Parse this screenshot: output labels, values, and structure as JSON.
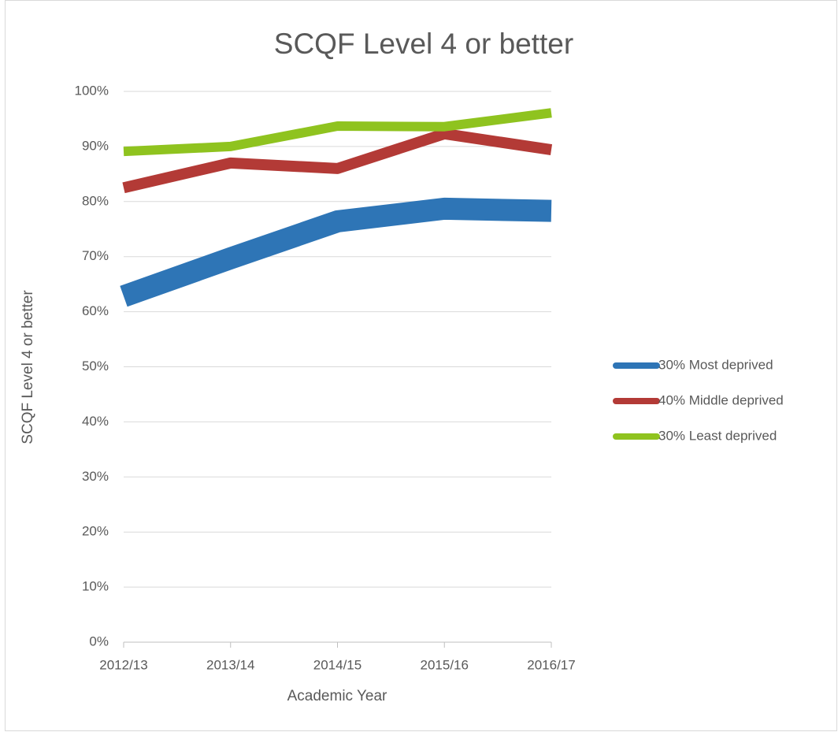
{
  "chart_data": {
    "type": "line",
    "title": "SCQF Level 4 or better",
    "x_label": "Academic Year",
    "y_label": "SCQF Level 4 or better",
    "categories": [
      "2012/13",
      "2013/14",
      "2014/15",
      "2015/16",
      "2016/17"
    ],
    "series": [
      {
        "name": "30% Most deprived",
        "color": "#2e75b6",
        "values": [
          62.8,
          69.7,
          76.4,
          78.7,
          78.3
        ]
      },
      {
        "name": "40% Middle deprived",
        "color": "#b33a36",
        "values": [
          82.5,
          87,
          86,
          92.3,
          89.4
        ]
      },
      {
        "name": "30% Least deprived",
        "color": "#8fc31f",
        "values": [
          89.1,
          90,
          93.7,
          93.6,
          96.1
        ]
      }
    ],
    "ylim": [
      0,
      100
    ],
    "yticks": [
      {
        "value": 0,
        "label": "0%"
      },
      {
        "value": 10,
        "label": "10%"
      },
      {
        "value": 20,
        "label": "20%"
      },
      {
        "value": 30,
        "label": "30%"
      },
      {
        "value": 40,
        "label": "40%"
      },
      {
        "value": 50,
        "label": "50%"
      },
      {
        "value": 60,
        "label": "60%"
      },
      {
        "value": 70,
        "label": "70%"
      },
      {
        "value": 80,
        "label": "80%"
      },
      {
        "value": 90,
        "label": "90%"
      },
      {
        "value": 100,
        "label": "100%"
      }
    ],
    "grid": true,
    "legend": "right"
  }
}
